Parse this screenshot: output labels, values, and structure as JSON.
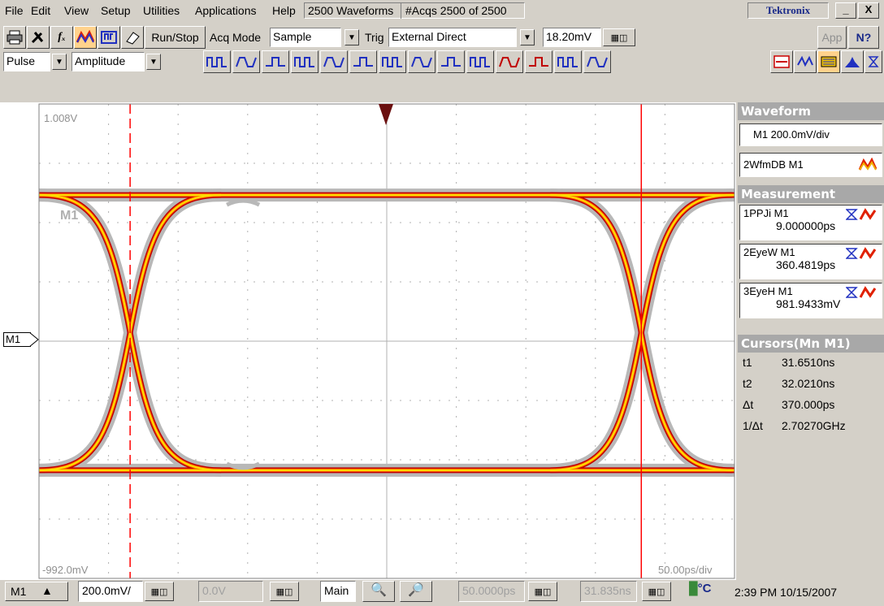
{
  "menu": {
    "items": [
      "File",
      "Edit",
      "View",
      "Setup",
      "Utilities",
      "Applications",
      "Help"
    ],
    "waveforms_label": "2500 Waveforms",
    "acqs_label": "#Acqs  2500 of 2500",
    "brand": "Tektronix",
    "minimize": "_",
    "close": "X"
  },
  "toolbar": {
    "run_stop": "Run/Stop",
    "acq_mode_label": "Acq Mode",
    "acq_mode_value": "Sample",
    "trig_label": "Trig",
    "trig_value": "External Direct",
    "trig_level": "18.20mV",
    "app": "App",
    "help": "N?"
  },
  "meas_toolbar": {
    "category": "Pulse",
    "measurement": "Amplitude"
  },
  "graticule": {
    "top_label": "1.008V",
    "bottom_label": "-992.0mV",
    "timebase_label": "50.00ps/div",
    "trace_label": "M1",
    "marker_label": "M1"
  },
  "waveform_panel": {
    "title": "Waveform",
    "source": "M1 200.0mV/div",
    "wfmdb": "2WfmDB M1"
  },
  "measurement_panel": {
    "title": "Measurement",
    "items": [
      {
        "name": "1PPJi   M1",
        "value": "9.000000ps"
      },
      {
        "name": "2EyeW  M1",
        "value": "360.4819ps"
      },
      {
        "name": "3EyeH  M1",
        "value": "981.9433mV"
      }
    ]
  },
  "cursors_panel": {
    "title": "Cursors(Mn M1)",
    "rows": [
      {
        "label": "t1",
        "value": "31.6510ns"
      },
      {
        "label": "t2",
        "value": "32.0210ns"
      },
      {
        "label": "Δt",
        "value": "370.000ps"
      },
      {
        "label": "1/Δt",
        "value": "2.70270GHz"
      }
    ]
  },
  "bottom_bar": {
    "channel": "M1",
    "scale": "200.0mV/",
    "offset": "0.0V",
    "main": "Main",
    "horiz_scale": "50.0000ps",
    "position": "31.835ns",
    "temp_unit": "°C",
    "datetime": "2:39 PM 10/15/2007"
  },
  "chart_data": {
    "type": "eye-diagram",
    "colors": {
      "grid": "#b0b0b0",
      "trace_core": "#ffe000",
      "trace_mid": "#ff6a00",
      "trace_edge": "#c00000",
      "persistence": "#b8b8b8",
      "cursor": "#ff0000"
    },
    "time_per_div": "50.00ps/div",
    "volts_per_div": "200.0mV/div",
    "cursor_t1_ns": 31.651,
    "cursor_t2_ns": 32.021
  }
}
